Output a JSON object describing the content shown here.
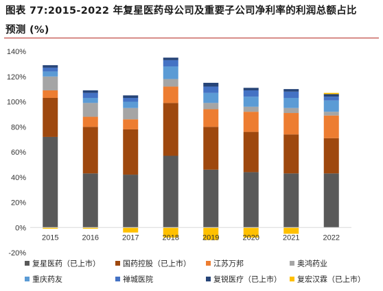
{
  "title_line1": "图表 77:2015-2022 年复星医药母公司及重要子公司净利率的利润总额占比",
  "title_line2": "预测 (%)",
  "chart_data": {
    "type": "bar",
    "stacked": true,
    "categories": [
      "2015",
      "2016",
      "2017",
      "2018",
      "2019",
      "2020",
      "2021",
      "2022"
    ],
    "ylim": [
      -20,
      140
    ],
    "yticks": [
      "-20%",
      "0%",
      "20%",
      "40%",
      "60%",
      "80%",
      "100%",
      "120%",
      "140%"
    ],
    "ytick_values": [
      -20,
      0,
      20,
      40,
      60,
      80,
      100,
      120,
      140
    ],
    "legend_position": "bottom",
    "series": [
      {
        "name": "复星医药（已上市）",
        "color": "#595959",
        "values": [
          72,
          43,
          42,
          57,
          46,
          44,
          43,
          43
        ]
      },
      {
        "name": "国药控股（已上市）",
        "color": "#9e480e",
        "values": [
          31,
          37,
          36,
          42,
          34,
          32,
          31,
          28
        ]
      },
      {
        "name": "江苏万邦",
        "color": "#ed7d31",
        "values": [
          6,
          8,
          8,
          13,
          14,
          16,
          17,
          18
        ]
      },
      {
        "name": "奥鸿药业",
        "color": "#a5a5a5",
        "values": [
          11,
          11,
          9,
          6,
          5,
          4,
          4,
          3
        ]
      },
      {
        "name": "重庆药友",
        "color": "#5b9bd5",
        "values": [
          4,
          4,
          5,
          10,
          8,
          8,
          8,
          9
        ]
      },
      {
        "name": "禅城医院",
        "color": "#4472c4",
        "values": [
          3,
          4,
          3,
          5,
          5,
          5,
          5,
          3
        ]
      },
      {
        "name": "复锐医疗（已上市）",
        "color": "#264478",
        "values": [
          2,
          2,
          2,
          2,
          3,
          2,
          2,
          2
        ]
      },
      {
        "name": "复宏汉霖（已上市）",
        "color": "#ffc000",
        "values": [
          -1,
          -1,
          -4,
          -8,
          -10,
          -8,
          -5,
          1
        ]
      }
    ]
  }
}
